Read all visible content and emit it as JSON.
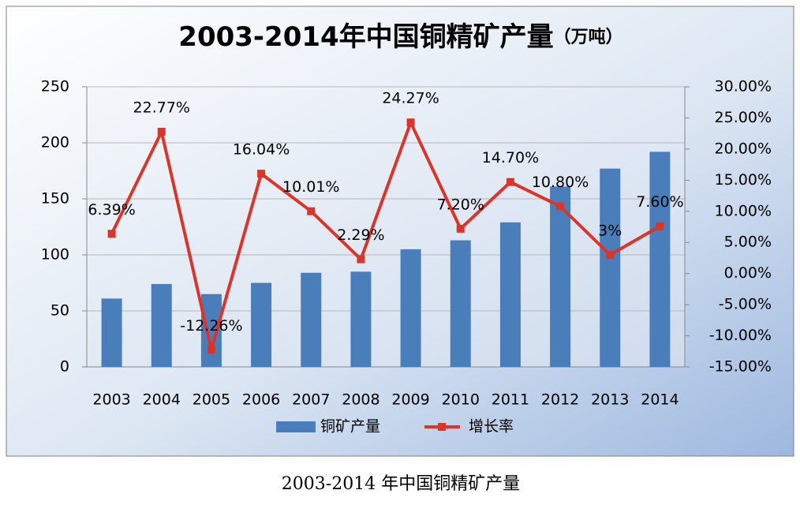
{
  "chart_data": {
    "type": "bar",
    "title": "2003-2014年中国铜精矿产量",
    "subtitle": "（万吨）",
    "caption": "2003-2014 年中国铜精矿产量",
    "categories": [
      "2003",
      "2004",
      "2005",
      "2006",
      "2007",
      "2008",
      "2009",
      "2010",
      "2011",
      "2012",
      "2013",
      "2014"
    ],
    "series": [
      {
        "name": "铜矿产量",
        "type": "bar",
        "color": "#4a7ebb",
        "values": [
          61,
          74,
          65,
          75,
          84,
          85,
          105,
          113,
          129,
          161,
          177,
          192
        ]
      },
      {
        "name": "增长率",
        "type": "line",
        "axis": "y2",
        "color": "#d9352b",
        "values": [
          6.39,
          22.77,
          -12.26,
          16.04,
          10.01,
          2.29,
          24.27,
          7.2,
          14.7,
          10.8,
          3,
          7.6
        ],
        "value_labels": [
          "6.39%",
          "22.77%",
          "-12.26%",
          "16.04%",
          "10.01%",
          "2.29%",
          "24.27%",
          "7.20%",
          "14.70%",
          "10.80%",
          "3%",
          "7.60%"
        ]
      }
    ],
    "ylim": [
      0,
      250
    ],
    "yticks": [
      0,
      50,
      100,
      150,
      200,
      250
    ],
    "y2lim": [
      -15,
      30
    ],
    "y2ticks": [
      {
        "value": -15,
        "label": "-15.00%"
      },
      {
        "value": -10,
        "label": "-10.00%"
      },
      {
        "value": -5,
        "label": "-5.00%"
      },
      {
        "value": 0,
        "label": "0.00%"
      },
      {
        "value": 5,
        "label": "5.00%"
      },
      {
        "value": 10,
        "label": "10.00%"
      },
      {
        "value": 15,
        "label": "15.00%"
      },
      {
        "value": 20,
        "label": "20.00%"
      },
      {
        "value": 25,
        "label": "25.00%"
      },
      {
        "value": 30,
        "label": "30.00%"
      }
    ],
    "grid": true
  }
}
